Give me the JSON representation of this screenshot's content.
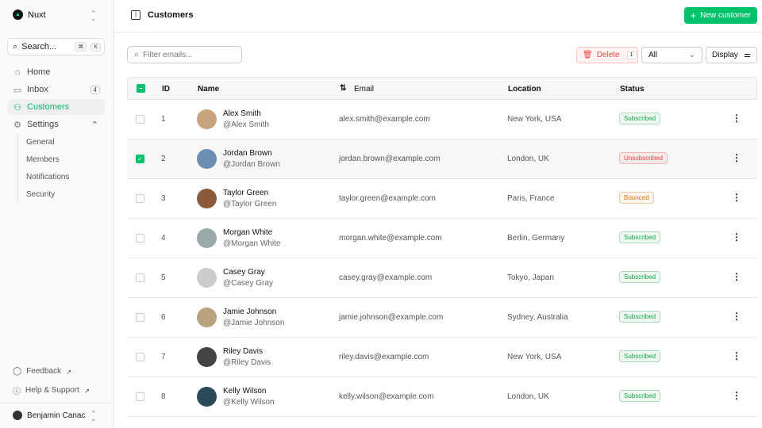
{
  "app": {
    "name": "Nuxt"
  },
  "sidebar": {
    "search_label": "Search...",
    "kbd": [
      "⌘",
      "K"
    ],
    "items": [
      {
        "label": "Home",
        "icon": "home-icon"
      },
      {
        "label": "Inbox",
        "icon": "inbox-icon",
        "badge": "4"
      },
      {
        "label": "Customers",
        "icon": "users-icon",
        "active": true
      },
      {
        "label": "Settings",
        "icon": "gear-icon"
      }
    ],
    "settings_sub": [
      "General",
      "Members",
      "Notifications",
      "Security"
    ],
    "footer": [
      {
        "label": "Feedback",
        "icon": "chat-icon"
      },
      {
        "label": "Help & Support",
        "icon": "info-icon"
      }
    ],
    "user": "Benjamin Canac"
  },
  "header": {
    "title": "Customers",
    "new_button": "New customer"
  },
  "toolbar": {
    "filter_placeholder": "Filter emails...",
    "delete_label": "Delete",
    "delete_count": "1",
    "status_select": "All",
    "display_label": "Display"
  },
  "table": {
    "columns": [
      "ID",
      "Name",
      "Email",
      "Location",
      "Status"
    ],
    "rows": [
      {
        "id": "1",
        "name": "Alex Smith",
        "handle": "@Alex Smith",
        "email": "alex.smith@example.com",
        "location": "New York, USA",
        "status": "Subscribed",
        "checked": false
      },
      {
        "id": "2",
        "name": "Jordan Brown",
        "handle": "@Jordan Brown",
        "email": "jordan.brown@example.com",
        "location": "London, UK",
        "status": "Unsubscribed",
        "checked": true
      },
      {
        "id": "3",
        "name": "Taylor Green",
        "handle": "@Taylor Green",
        "email": "taylor.green@example.com",
        "location": "Paris, France",
        "status": "Bounced",
        "checked": false
      },
      {
        "id": "4",
        "name": "Morgan White",
        "handle": "@Morgan White",
        "email": "morgan.white@example.com",
        "location": "Berlin, Germany",
        "status": "Subscribed",
        "checked": false
      },
      {
        "id": "5",
        "name": "Casey Gray",
        "handle": "@Casey Gray",
        "email": "casey.gray@example.com",
        "location": "Tokyo, Japan",
        "status": "Subscribed",
        "checked": false
      },
      {
        "id": "6",
        "name": "Jamie Johnson",
        "handle": "@Jamie Johnson",
        "email": "jamie.johnson@example.com",
        "location": "Sydney, Australia",
        "status": "Subscribed",
        "checked": false
      },
      {
        "id": "7",
        "name": "Riley Davis",
        "handle": "@Riley Davis",
        "email": "riley.davis@example.com",
        "location": "New York, USA",
        "status": "Subscribed",
        "checked": false
      },
      {
        "id": "8",
        "name": "Kelly Wilson",
        "handle": "@Kelly Wilson",
        "email": "kelly.wilson@example.com",
        "location": "London, UK",
        "status": "Subscribed",
        "checked": false
      }
    ]
  },
  "colors": {
    "accent": "#00c16a",
    "Subscribed": "#16a34a",
    "Unsubscribed": "#ef4444",
    "Bounced": "#d97706"
  }
}
